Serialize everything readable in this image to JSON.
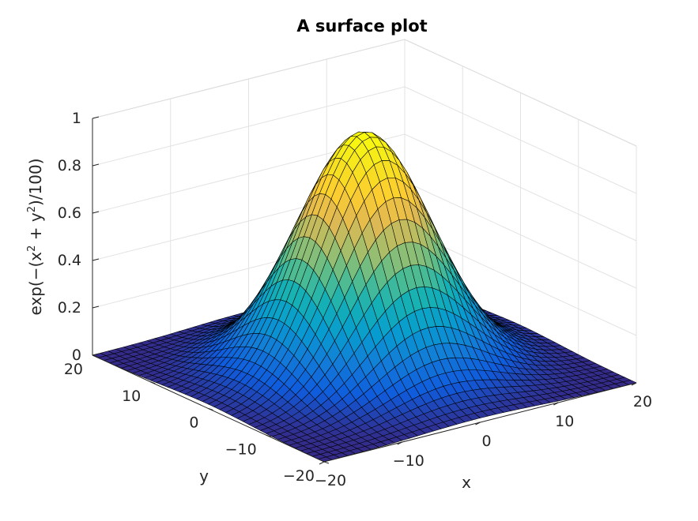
{
  "chart_data": {
    "type": "surface",
    "title": "A surface plot",
    "function": "exp(-(x^2 + y^2)/100)",
    "xlabel": "x",
    "ylabel": "y",
    "zlabel_parts": [
      "exp(−(x",
      "2",
      " + y",
      "2",
      ")/100)"
    ],
    "xlim": [
      -20,
      20
    ],
    "ylim": [
      -20,
      20
    ],
    "zlim": [
      0,
      1
    ],
    "x_ticks": [
      -20,
      -10,
      0,
      10,
      20
    ],
    "y_ticks": [
      -20,
      -10,
      0,
      10,
      20
    ],
    "z_ticks": [
      0,
      0.2,
      0.4,
      0.6,
      0.8,
      1
    ],
    "x_tick_labels": [
      "−20",
      "−10",
      "0",
      "10",
      "20"
    ],
    "y_tick_labels": [
      "−20",
      "−10",
      "0",
      "10",
      "20"
    ],
    "z_tick_labels": [
      "0",
      "0.2",
      "0.4",
      "0.6",
      "0.8",
      "1"
    ],
    "grid_step": 1,
    "colormap": "parula",
    "edge_color": "#000000",
    "grid": true
  }
}
